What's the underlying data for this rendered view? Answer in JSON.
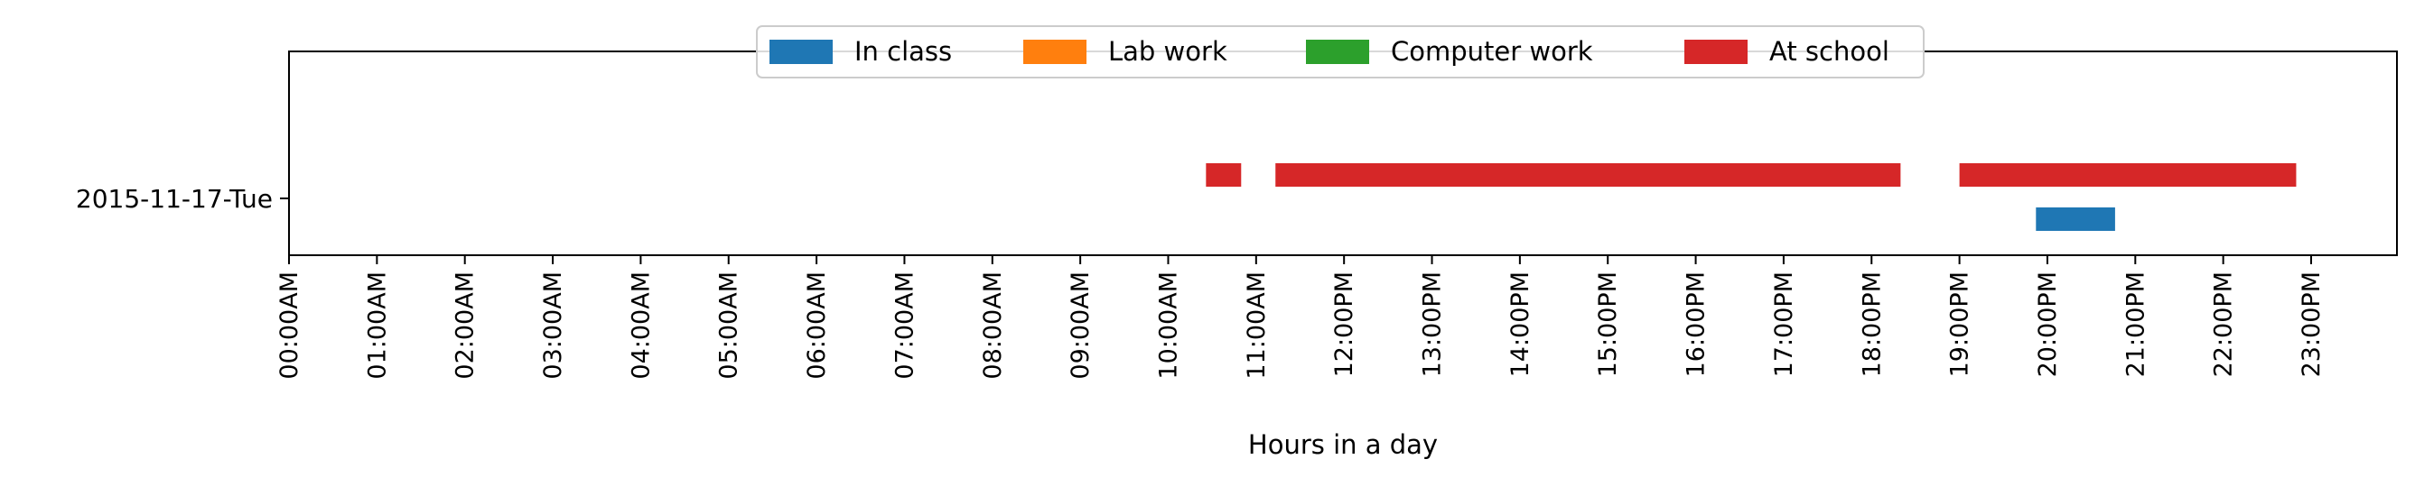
{
  "chart_data": {
    "type": "bar",
    "orientation": "horizontal-timeline",
    "title": "",
    "xlabel": "Hours in a day",
    "ylabel": "",
    "x_unit": "hours",
    "xlim": [
      0,
      24
    ],
    "x_ticks": [
      "00:00AM",
      "01:00AM",
      "02:00AM",
      "03:00AM",
      "04:00AM",
      "05:00AM",
      "06:00AM",
      "07:00AM",
      "08:00AM",
      "09:00AM",
      "10:00AM",
      "11:00AM",
      "12:00PM",
      "13:00PM",
      "14:00PM",
      "15:00PM",
      "16:00PM",
      "17:00PM",
      "18:00PM",
      "19:00PM",
      "20:00PM",
      "21:00PM",
      "22:00PM",
      "23:00PM"
    ],
    "categories": [
      "2015-11-17-Tue"
    ],
    "grid": false,
    "legend_position": "top-center",
    "series": [
      {
        "name": "In class",
        "color": "#1f77b4",
        "intervals": [
          [
            19.87,
            20.77
          ]
        ]
      },
      {
        "name": "Lab work",
        "color": "#ff7f0e",
        "intervals": []
      },
      {
        "name": "Computer work",
        "color": "#2ca02c",
        "intervals": []
      },
      {
        "name": "At school",
        "color": "#d62728",
        "intervals": [
          [
            10.43,
            10.83
          ],
          [
            11.22,
            18.33
          ],
          [
            19.0,
            22.83
          ]
        ]
      }
    ]
  }
}
